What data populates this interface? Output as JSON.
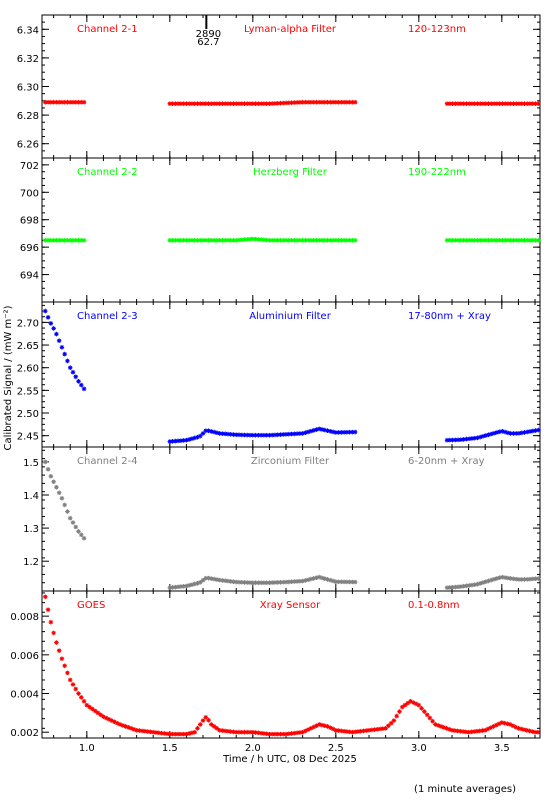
{
  "chart_data": {
    "type": "scatter",
    "xlabel": "Time / h UTC, 08 Dec 2025",
    "ylabel": "Calibrated Signal / (mW m⁻²)",
    "footnote": "(1 minute averages)",
    "xlim": [
      0.73,
      3.73
    ],
    "xticks": [
      "1.0",
      "1.5",
      "2.0",
      "2.5",
      "3.0",
      "3.5"
    ],
    "xtick_values": [
      1.0,
      1.5,
      2.0,
      2.5,
      3.0,
      3.5
    ],
    "annotation": {
      "x": 1.72,
      "lines": [
        "2890",
        "62.7"
      ]
    },
    "panels": [
      {
        "name": "Channel 2-1",
        "filter": "Lyman-alpha Filter",
        "band": "120-123nm",
        "color": "#ff0000",
        "ylim": [
          6.25,
          6.35
        ],
        "yticks": [
          "6.26",
          "6.28",
          "6.30",
          "6.32",
          "6.34"
        ],
        "ytick_values": [
          6.26,
          6.28,
          6.3,
          6.32,
          6.34
        ],
        "segments": [
          {
            "x": [
              0.75,
              0.85,
              0.95,
              0.99
            ],
            "y": [
              6.289,
              6.289,
              6.289,
              6.289
            ]
          },
          {
            "x": [
              1.5,
              1.7,
              1.9,
              2.1,
              2.3,
              2.5,
              2.62
            ],
            "y": [
              6.288,
              6.288,
              6.288,
              6.288,
              6.289,
              6.289,
              6.289
            ]
          },
          {
            "x": [
              3.17,
              3.3,
              3.5,
              3.73
            ],
            "y": [
              6.288,
              6.288,
              6.288,
              6.288
            ]
          }
        ]
      },
      {
        "name": "Channel 2-2",
        "filter": "Herzberg Filter",
        "band": "190-222nm",
        "color": "#00ff00",
        "ylim": [
          692.0,
          702.5
        ],
        "yticks": [
          "694",
          "696",
          "698",
          "700",
          "702"
        ],
        "ytick_values": [
          694,
          696,
          698,
          700,
          702
        ],
        "segments": [
          {
            "x": [
              0.75,
              0.85,
              0.95,
              0.99
            ],
            "y": [
              696.5,
              696.5,
              696.5,
              696.5
            ]
          },
          {
            "x": [
              1.5,
              1.7,
              1.9,
              2.0,
              2.1,
              2.3,
              2.5,
              2.62
            ],
            "y": [
              696.5,
              696.5,
              696.5,
              696.6,
              696.5,
              696.5,
              696.5,
              696.5
            ]
          },
          {
            "x": [
              3.17,
              3.3,
              3.5,
              3.73
            ],
            "y": [
              696.5,
              696.5,
              696.5,
              696.5
            ]
          }
        ]
      },
      {
        "name": "Channel 2-3",
        "filter": "Aluminium Filter",
        "band": "17-80nm + Xray",
        "color": "#0000ff",
        "ylim": [
          2.425,
          2.745
        ],
        "yticks": [
          "2.45",
          "2.50",
          "2.55",
          "2.60",
          "2.65",
          "2.70"
        ],
        "ytick_values": [
          2.45,
          2.5,
          2.55,
          2.6,
          2.65,
          2.7
        ],
        "segments": [
          {
            "x": [
              0.75,
              0.78,
              0.81,
              0.85,
              0.9,
              0.95,
              0.99
            ],
            "y": [
              2.725,
              2.7,
              2.68,
              2.645,
              2.6,
              2.57,
              2.55
            ]
          },
          {
            "x": [
              1.5,
              1.6,
              1.68,
              1.72,
              1.8,
              1.9,
              2.0,
              2.1,
              2.2,
              2.3,
              2.4,
              2.5,
              2.62
            ],
            "y": [
              2.437,
              2.44,
              2.448,
              2.462,
              2.455,
              2.452,
              2.451,
              2.451,
              2.453,
              2.455,
              2.465,
              2.457,
              2.458
            ]
          },
          {
            "x": [
              3.17,
              3.25,
              3.35,
              3.45,
              3.5,
              3.55,
              3.6,
              3.65,
              3.73
            ],
            "y": [
              2.44,
              2.441,
              2.445,
              2.455,
              2.46,
              2.455,
              2.455,
              2.458,
              2.463
            ]
          }
        ]
      },
      {
        "name": "Channel 2-4",
        "filter": "Zirconium Filter",
        "band": "6-20nm + Xray",
        "color": "#808080",
        "ylim": [
          1.11,
          1.545
        ],
        "yticks": [
          "1.2",
          "1.3",
          "1.4",
          "1.5"
        ],
        "ytick_values": [
          1.2,
          1.3,
          1.4,
          1.5
        ],
        "segments": [
          {
            "x": [
              0.75,
              0.78,
              0.81,
              0.85,
              0.9,
              0.95,
              0.99
            ],
            "y": [
              1.5,
              1.46,
              1.43,
              1.39,
              1.33,
              1.29,
              1.265
            ]
          },
          {
            "x": [
              1.5,
              1.6,
              1.68,
              1.72,
              1.8,
              1.9,
              2.0,
              2.1,
              2.2,
              2.3,
              2.4,
              2.5,
              2.62
            ],
            "y": [
              1.12,
              1.125,
              1.135,
              1.15,
              1.143,
              1.137,
              1.135,
              1.135,
              1.137,
              1.14,
              1.152,
              1.138,
              1.137
            ]
          },
          {
            "x": [
              3.17,
              3.25,
              3.35,
              3.45,
              3.5,
              3.55,
              3.6,
              3.65,
              3.73
            ],
            "y": [
              1.12,
              1.123,
              1.13,
              1.145,
              1.152,
              1.148,
              1.145,
              1.145,
              1.148
            ]
          }
        ]
      },
      {
        "name": "GOES",
        "filter": "Xray Sensor",
        "band": "0.1-0.8nm",
        "color": "#ff0000",
        "ylim": [
          0.0017,
          0.0093
        ],
        "yticks": [
          "0.002",
          "0.004",
          "0.006",
          "0.008"
        ],
        "ytick_values": [
          0.002,
          0.004,
          0.006,
          0.008
        ],
        "segments": [
          {
            "x": [
              0.75,
              0.78,
              0.81,
              0.85,
              0.9,
              0.95,
              1.0,
              1.1,
              1.2,
              1.3,
              1.4,
              1.5,
              1.6,
              1.65,
              1.7,
              1.72,
              1.75,
              1.8,
              1.9,
              2.0,
              2.1,
              2.2,
              2.3,
              2.35,
              2.4,
              2.45,
              2.5,
              2.6,
              2.7,
              2.8,
              2.85,
              2.9,
              2.95,
              3.0,
              3.05,
              3.1,
              3.2,
              3.3,
              3.4,
              3.45,
              3.5,
              3.55,
              3.6,
              3.7,
              3.73
            ],
            "y": [
              0.009,
              0.0078,
              0.0068,
              0.0058,
              0.0047,
              0.004,
              0.0034,
              0.0028,
              0.0024,
              0.0021,
              0.002,
              0.0019,
              0.0019,
              0.002,
              0.0026,
              0.0028,
              0.0024,
              0.0021,
              0.002,
              0.002,
              0.0019,
              0.0019,
              0.002,
              0.0022,
              0.0024,
              0.0023,
              0.0021,
              0.002,
              0.0021,
              0.0022,
              0.0026,
              0.0033,
              0.0036,
              0.0034,
              0.0029,
              0.0024,
              0.0021,
              0.002,
              0.0021,
              0.0023,
              0.0025,
              0.0024,
              0.0022,
              0.002,
              0.002
            ]
          }
        ]
      }
    ]
  }
}
